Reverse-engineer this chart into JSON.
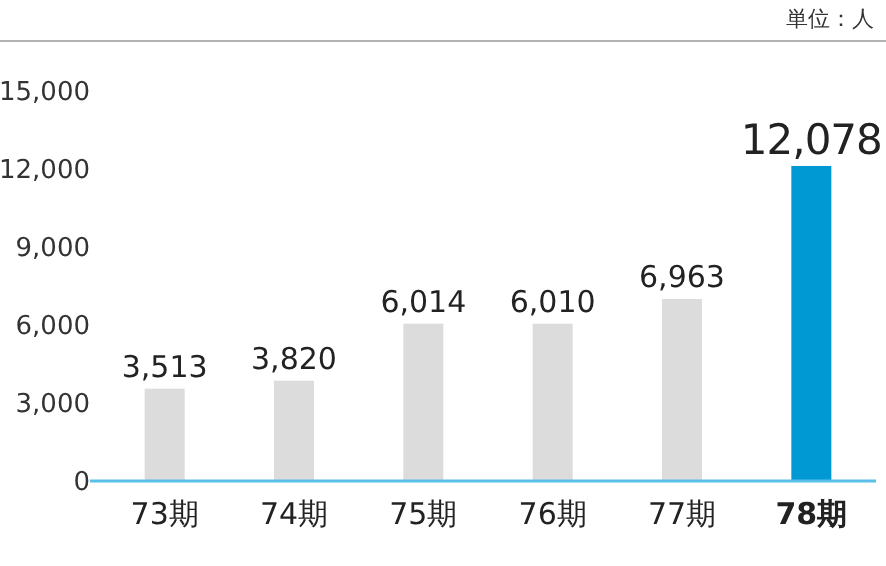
{
  "chart_data": {
    "type": "bar",
    "annotations": [
      "単位：人"
    ],
    "categories": [
      "73期",
      "74期",
      "75期",
      "76期",
      "77期",
      "78期"
    ],
    "values": [
      3513,
      3820,
      6014,
      6010,
      6963,
      12078
    ],
    "colors": [
      "#dcdcdc",
      "#dcdcdc",
      "#dcdcdc",
      "#dcdcdc",
      "#dcdcdc",
      "#0099d4"
    ],
    "value_labels": [
      "3,513",
      "3,820",
      "6,014",
      "6,010",
      "6,963",
      "12,078"
    ],
    "ylim": [
      0,
      15000
    ],
    "yticks": [
      {
        "value": 0,
        "label": "0"
      },
      {
        "value": 3000,
        "label": "3,000"
      },
      {
        "value": 6000,
        "label": "6,000"
      },
      {
        "value": 9000,
        "label": "9,000"
      },
      {
        "value": 12000,
        "label": "12,000"
      },
      {
        "value": 15000,
        "label": "15,000"
      }
    ],
    "grid": false
  }
}
